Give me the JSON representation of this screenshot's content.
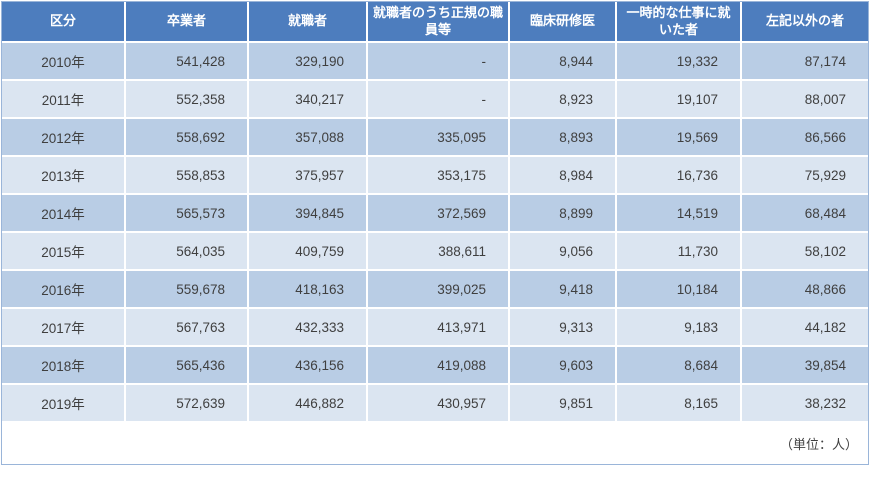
{
  "colors": {
    "header_bg": "#4d7dbe",
    "header_text": "#ffffff",
    "row_odd_bg": "#b9cde5",
    "row_even_bg": "#dbe5f1",
    "body_text": "#3f3f3f",
    "grid_line": "#ffffff",
    "outer_border": "#9ab5d9"
  },
  "table": {
    "columns": [
      "区分",
      "卒業者",
      "就職者",
      "就職者のうち正規の職員等",
      "臨床研修医",
      "一時的な仕事に就いた者",
      "左記以外の者"
    ],
    "rows": [
      [
        "2010年",
        "541,428",
        "329,190",
        "-",
        "8,944",
        "19,332",
        "87,174"
      ],
      [
        "2011年",
        "552,358",
        "340,217",
        "-",
        "8,923",
        "19,107",
        "88,007"
      ],
      [
        "2012年",
        "558,692",
        "357,088",
        "335,095",
        "8,893",
        "19,569",
        "86,566"
      ],
      [
        "2013年",
        "558,853",
        "375,957",
        "353,175",
        "8,984",
        "16,736",
        "75,929"
      ],
      [
        "2014年",
        "565,573",
        "394,845",
        "372,569",
        "8,899",
        "14,519",
        "68,484"
      ],
      [
        "2015年",
        "564,035",
        "409,759",
        "388,611",
        "9,056",
        "11,730",
        "58,102"
      ],
      [
        "2016年",
        "559,678",
        "418,163",
        "399,025",
        "9,418",
        "10,184",
        "48,866"
      ],
      [
        "2017年",
        "567,763",
        "432,333",
        "413,971",
        "9,313",
        "9,183",
        "44,182"
      ],
      [
        "2018年",
        "565,436",
        "436,156",
        "419,088",
        "9,603",
        "8,684",
        "39,854"
      ],
      [
        "2019年",
        "572,639",
        "446,882",
        "430,957",
        "9,851",
        "8,165",
        "38,232"
      ]
    ],
    "unit_note": "（単位：人）"
  }
}
